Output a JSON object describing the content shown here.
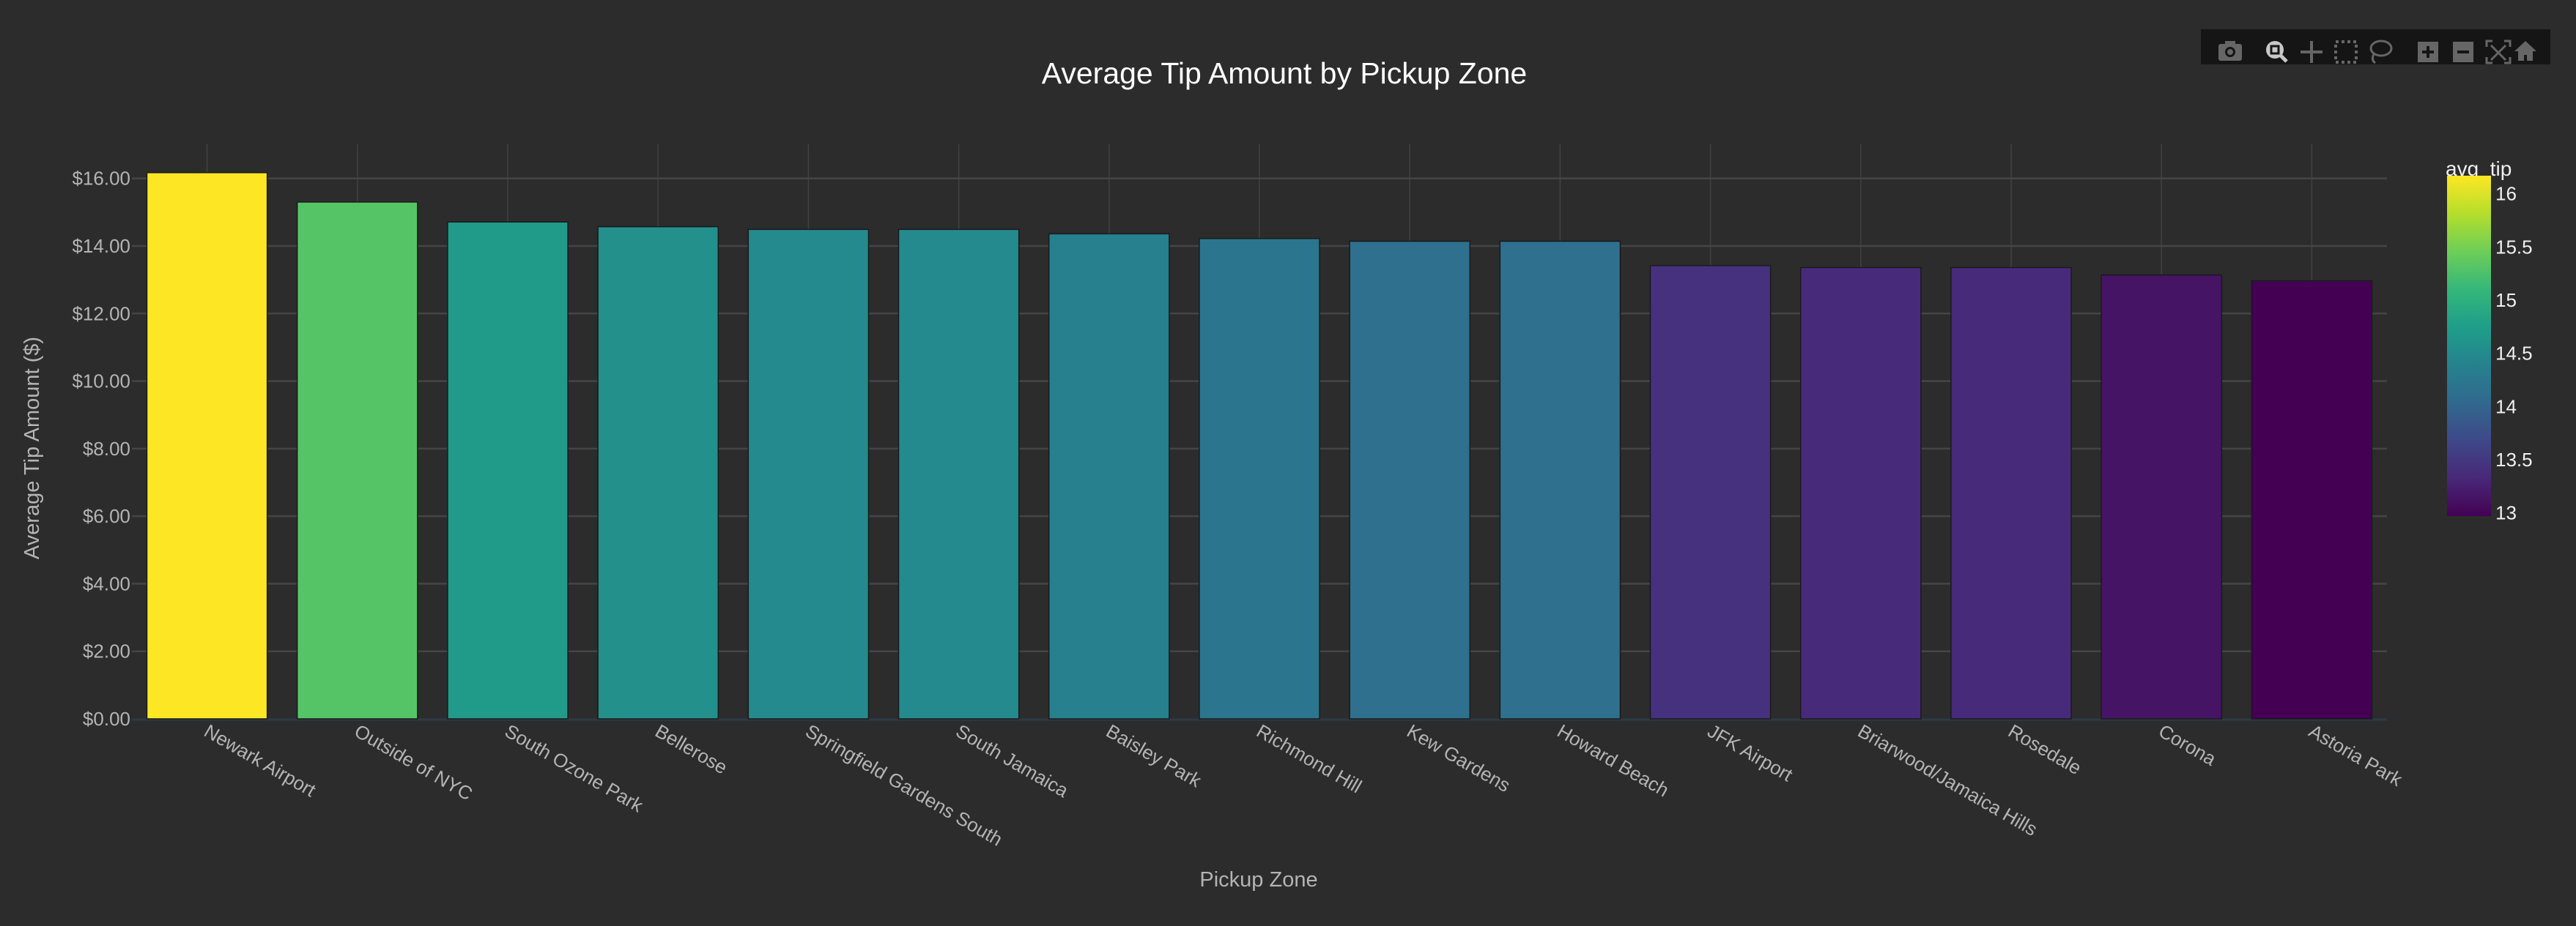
{
  "chart_data": {
    "type": "bar",
    "title": "Average Tip Amount by Pickup Zone",
    "xlabel": "Pickup Zone",
    "ylabel": "Average Tip Amount ($)",
    "categories": [
      "Newark Airport",
      "Outside of NYC",
      "South Ozone Park",
      "Bellerose",
      "Springfield Gardens South",
      "South Jamaica",
      "Baisley Park",
      "Richmond Hill",
      "Kew Gardens",
      "Howard Beach",
      "JFK Airport",
      "Briarwood/Jamaica Hills",
      "Rosedale",
      "Corona",
      "Astoria Park"
    ],
    "values": [
      16.17,
      15.3,
      14.71,
      14.57,
      14.49,
      14.49,
      14.36,
      14.22,
      14.14,
      14.14,
      13.42,
      13.36,
      13.36,
      13.14,
      12.97
    ],
    "ylim": [
      0,
      16.9
    ],
    "yticks": [
      0,
      2,
      4,
      6,
      8,
      10,
      12,
      14,
      16
    ],
    "ytick_labels": [
      "$0.00",
      "$2.00",
      "$4.00",
      "$6.00",
      "$8.00",
      "$10.00",
      "$12.00",
      "$14.00",
      "$16.00"
    ],
    "grid": true,
    "colorscale": "viridis",
    "colorbar": {
      "title": "avg_tip",
      "range": [
        12.97,
        16.17
      ],
      "ticks": [
        13,
        13.5,
        14,
        14.5,
        15,
        15.5,
        16
      ],
      "tick_labels": [
        "13",
        "13.5",
        "14",
        "14.5",
        "15",
        "15.5",
        "16"
      ],
      "placement": "right"
    }
  },
  "toolbar": {
    "icons": [
      "camera-icon",
      "zoom-icon",
      "pan-icon",
      "box-select-icon",
      "lasso-select-icon",
      "zoom-in-icon",
      "zoom-out-icon",
      "autoscale-icon",
      "reset-axes-icon"
    ],
    "active": "zoom-icon"
  },
  "colors": {
    "background": "#2c2c2c",
    "grid": "#454545",
    "text": "#b4b4b4",
    "toolbar_bg": "#151515"
  }
}
